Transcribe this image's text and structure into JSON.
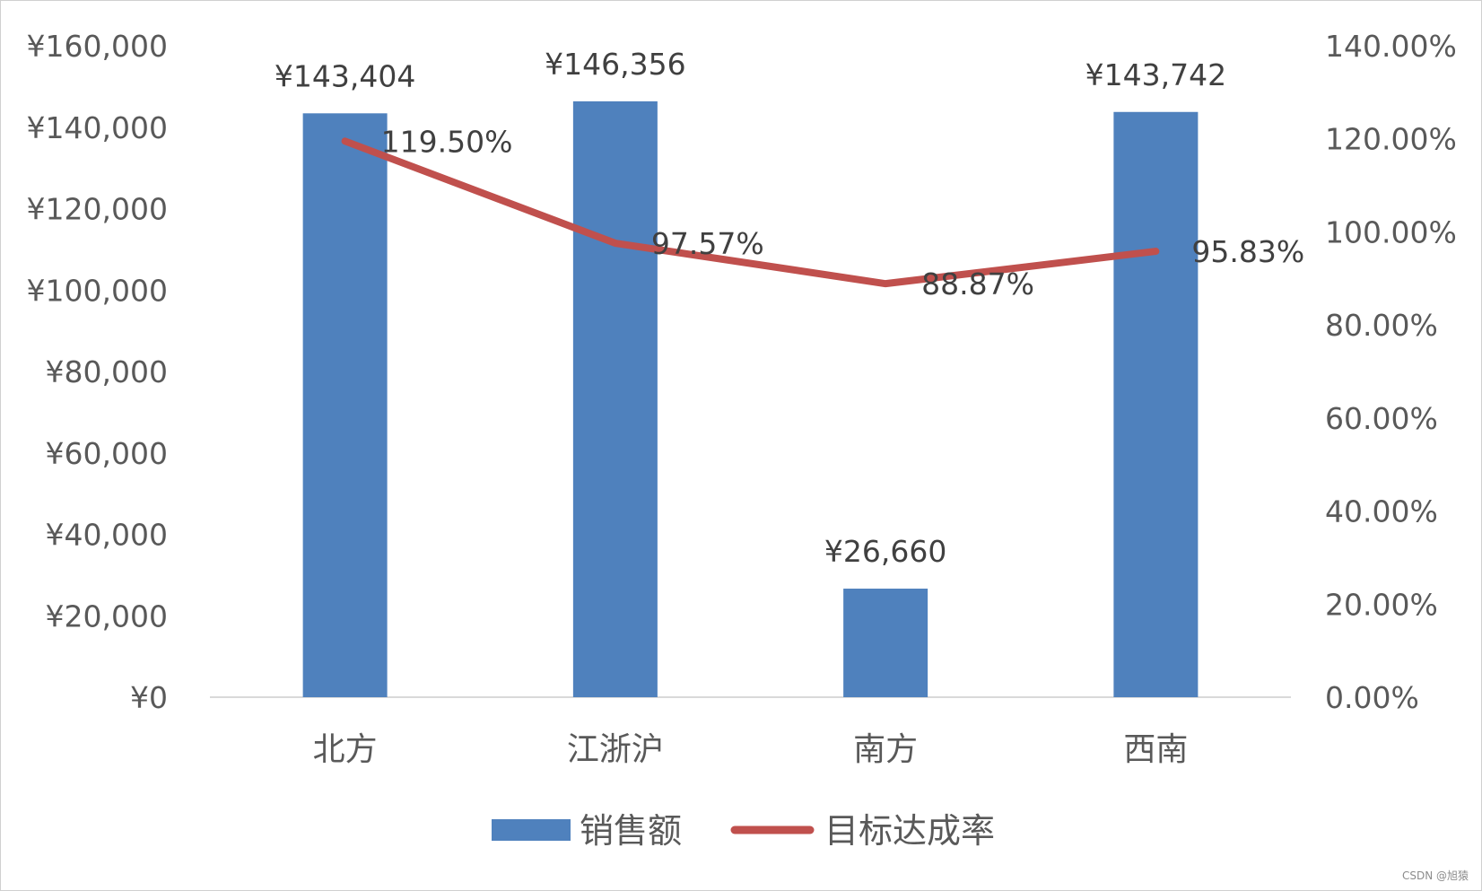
{
  "chart_data": {
    "type": "bar",
    "categories": [
      "北方",
      "江浙沪",
      "南方",
      "西南"
    ],
    "series": [
      {
        "name": "销售额",
        "type": "bar",
        "axis": "left",
        "values": [
          143404,
          146356,
          26660,
          143742
        ],
        "labels": [
          "¥143,404",
          "¥146,356",
          "¥26,660",
          "¥143,742"
        ],
        "color": "#4f81bd"
      },
      {
        "name": "目标达成率",
        "type": "line",
        "axis": "right",
        "values": [
          119.5,
          97.57,
          88.87,
          95.83
        ],
        "labels": [
          "119.50%",
          "97.57%",
          "88.87%",
          "95.83%"
        ],
        "color": "#c0504d"
      }
    ],
    "ylim_left": [
      0,
      160000
    ],
    "ylim_right": [
      0,
      140
    ],
    "left_ticks": [
      "¥0",
      "¥20,000",
      "¥40,000",
      "¥60,000",
      "¥80,000",
      "¥100,000",
      "¥120,000",
      "¥140,000",
      "¥160,000"
    ],
    "right_ticks": [
      "0.00%",
      "20.00%",
      "40.00%",
      "60.00%",
      "80.00%",
      "100.00%",
      "120.00%",
      "140.00%"
    ],
    "grid": false,
    "legend_position": "bottom"
  },
  "watermark": "CSDN @旭猿"
}
